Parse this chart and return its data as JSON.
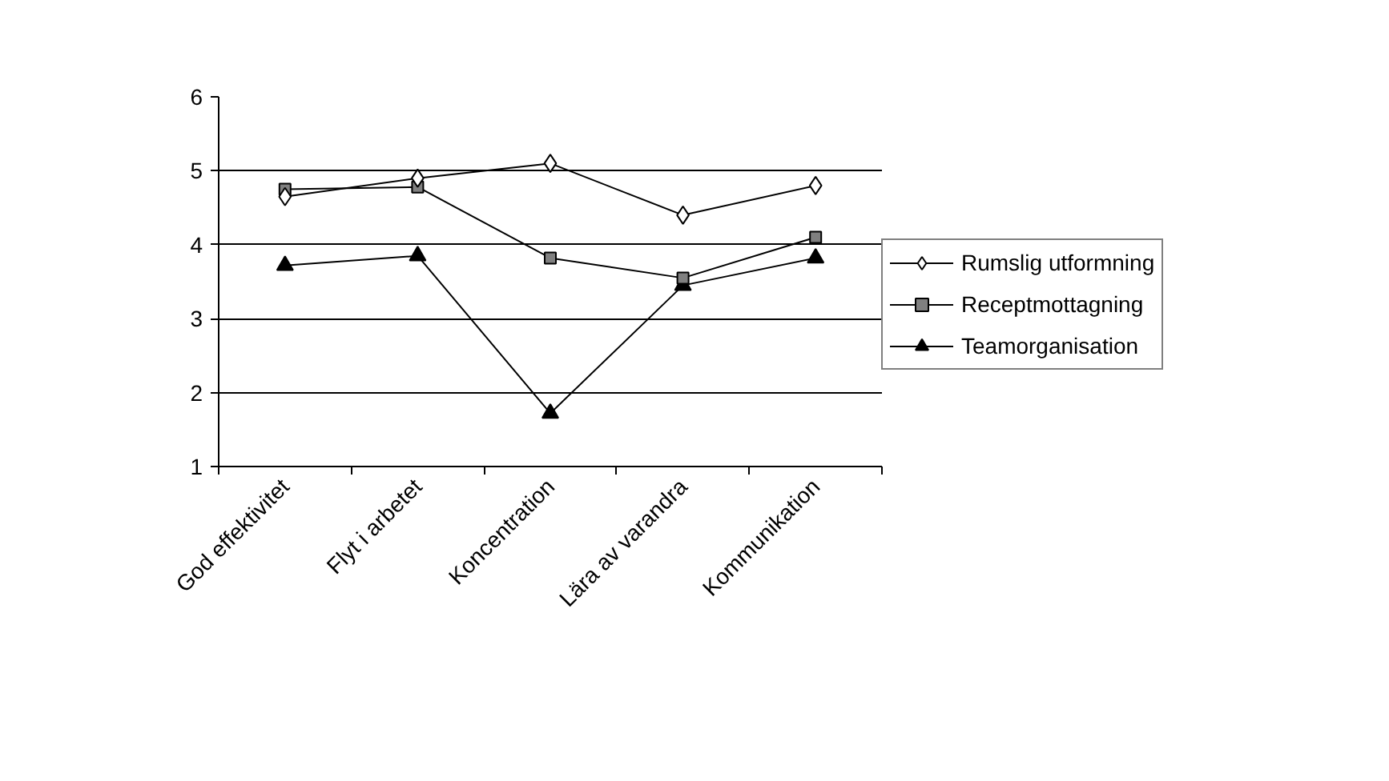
{
  "chart_data": {
    "type": "line",
    "categories": [
      "God effektivitet",
      "Flyt i arbetet",
      "Koncentration",
      "Lära av varandra",
      "Kommunikation"
    ],
    "ylim": [
      1,
      6
    ],
    "yticks": [
      1,
      2,
      3,
      4,
      5,
      6
    ],
    "grid": "y",
    "legend": "right",
    "series": [
      {
        "name": "Rumslig utformning",
        "color": "#ffffff",
        "marker": "diamond",
        "values": [
          4.65,
          4.9,
          5.1,
          4.4,
          4.8
        ]
      },
      {
        "name": "Receptmottagning",
        "color": "#808080",
        "marker": "square",
        "values": [
          4.75,
          4.78,
          3.82,
          3.55,
          4.1
        ]
      },
      {
        "name": "Teamorganisation",
        "color": "#000000",
        "marker": "triangle",
        "values": [
          3.72,
          3.85,
          1.72,
          3.45,
          3.82
        ]
      }
    ]
  }
}
